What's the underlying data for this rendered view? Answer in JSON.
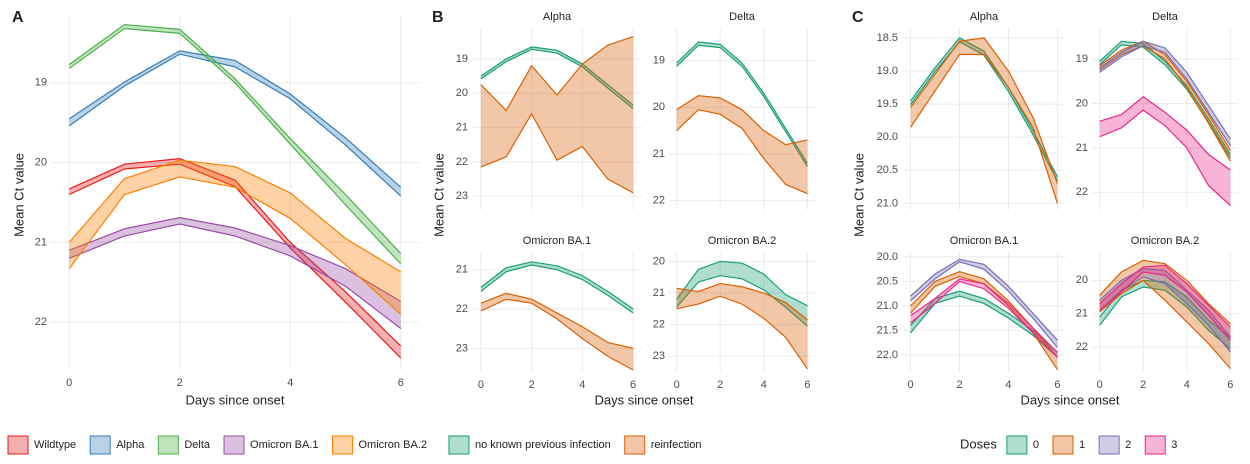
{
  "chart_data": [
    {
      "type": "ribbon",
      "panel": "A",
      "ylabel": "Mean Ct value",
      "xlabel": "Days since onset",
      "x": [
        0,
        1,
        2,
        3,
        4,
        5,
        6
      ],
      "xlim": [
        -0.33,
        6.33
      ],
      "xticks": [
        0,
        2,
        4,
        6
      ],
      "ylim": [
        18.15,
        22.6
      ],
      "yticks": [
        19,
        20,
        21,
        22
      ],
      "y_reverse": true,
      "grid": true,
      "series": [
        {
          "name": "Wildtype",
          "color": "#e41a1c",
          "lower": [
            20.33,
            20.02,
            19.95,
            20.22,
            21.0,
            21.62,
            22.3
          ],
          "upper": [
            20.4,
            20.08,
            20.02,
            20.3,
            21.07,
            21.75,
            22.45
          ]
        },
        {
          "name": "Alpha",
          "color": "#377eb8",
          "lower": [
            19.45,
            18.99,
            18.6,
            18.72,
            19.14,
            19.69,
            20.31
          ],
          "upper": [
            19.54,
            19.04,
            18.64,
            18.8,
            19.2,
            19.78,
            20.42
          ]
        },
        {
          "name": "Delta",
          "color": "#4daf4a",
          "lower": [
            18.77,
            18.27,
            18.33,
            18.95,
            19.7,
            20.4,
            21.14
          ],
          "upper": [
            18.82,
            18.32,
            18.38,
            19.0,
            19.77,
            20.53,
            21.27
          ]
        },
        {
          "name": "Omicron BA.1",
          "color": "#984ea3",
          "lower": [
            21.1,
            20.83,
            20.69,
            20.82,
            21.04,
            21.33,
            21.74
          ],
          "upper": [
            21.2,
            20.92,
            20.77,
            20.92,
            21.17,
            21.55,
            22.08
          ]
        },
        {
          "name": "Omicron BA.2",
          "color": "#ff7f00",
          "lower": [
            21.0,
            20.2,
            19.97,
            20.05,
            20.38,
            20.95,
            21.37
          ],
          "upper": [
            21.33,
            20.4,
            20.18,
            20.31,
            20.7,
            21.28,
            21.9
          ]
        }
      ]
    },
    {
      "type": "ribbon",
      "panel": "B",
      "ylabel": "Mean Ct value",
      "xlabel": "Days since onset",
      "title": "Alpha",
      "x": [
        0,
        1,
        2,
        3,
        4,
        5,
        6
      ],
      "xlim": [
        -0.35,
        6.35
      ],
      "xticks": [
        0,
        2,
        4,
        6
      ],
      "ylim": [
        18.1,
        23.4
      ],
      "yticks": [
        19,
        20,
        21,
        22,
        23
      ],
      "y_reverse": true,
      "grid": true,
      "series": [
        {
          "name": "no known previous infection",
          "color": "#1b9e77",
          "lower": [
            19.5,
            19.0,
            18.65,
            18.75,
            19.15,
            19.75,
            20.35
          ],
          "upper": [
            19.58,
            19.08,
            18.72,
            18.83,
            19.23,
            19.85,
            20.45
          ]
        },
        {
          "name": "reinfection",
          "color": "#d95f02",
          "lower": [
            19.75,
            20.5,
            19.2,
            20.05,
            19.15,
            18.6,
            18.35
          ],
          "upper": [
            22.15,
            21.85,
            20.6,
            21.95,
            21.55,
            22.5,
            22.9
          ]
        }
      ]
    },
    {
      "type": "ribbon",
      "title": "Delta",
      "x": [
        0,
        1,
        2,
        3,
        4,
        5,
        6
      ],
      "xlim": [
        -0.35,
        6.35
      ],
      "xticks": [
        0,
        2,
        4,
        6
      ],
      "ylim": [
        18.3,
        22.2
      ],
      "yticks": [
        19,
        20,
        21,
        22
      ],
      "y_reverse": true,
      "grid": true,
      "series": [
        {
          "name": "no known previous infection",
          "color": "#1b9e77",
          "lower": [
            19.05,
            18.6,
            18.65,
            19.05,
            19.7,
            20.45,
            21.2
          ],
          "upper": [
            19.12,
            18.67,
            18.72,
            19.12,
            19.77,
            20.52,
            21.27
          ]
        },
        {
          "name": "reinfection",
          "color": "#d95f02",
          "lower": [
            20.05,
            19.75,
            19.8,
            20.05,
            20.5,
            20.8,
            20.7
          ],
          "upper": [
            20.5,
            20.05,
            20.15,
            20.45,
            21.1,
            21.65,
            21.85
          ]
        }
      ]
    },
    {
      "type": "ribbon",
      "title": "Omicron BA.1",
      "x": [
        0,
        1,
        2,
        3,
        4,
        5,
        6
      ],
      "xlim": [
        -0.35,
        6.35
      ],
      "xticks": [
        0,
        2,
        4,
        6
      ],
      "ylim": [
        20.55,
        23.6
      ],
      "yticks": [
        21,
        22,
        23
      ],
      "y_reverse": true,
      "grid": true,
      "series": [
        {
          "name": "no known previous infection",
          "color": "#1b9e77",
          "lower": [
            21.45,
            20.95,
            20.8,
            20.9,
            21.15,
            21.55,
            22.0
          ],
          "upper": [
            21.55,
            21.05,
            20.88,
            21.0,
            21.25,
            21.65,
            22.1
          ]
        },
        {
          "name": "reinfection",
          "color": "#d95f02",
          "lower": [
            21.85,
            21.6,
            21.75,
            22.1,
            22.45,
            22.85,
            23.0
          ],
          "upper": [
            22.05,
            21.75,
            21.85,
            22.25,
            22.75,
            23.2,
            23.55
          ]
        }
      ]
    },
    {
      "type": "ribbon",
      "title": "Omicron BA.2",
      "x": [
        0,
        1,
        2,
        3,
        4,
        5,
        6
      ],
      "xlim": [
        -0.35,
        6.35
      ],
      "xticks": [
        0,
        2,
        4,
        6
      ],
      "ylim": [
        19.7,
        23.5
      ],
      "yticks": [
        20,
        21,
        22,
        23
      ],
      "y_reverse": true,
      "grid": true,
      "series": [
        {
          "name": "no known previous infection",
          "color": "#1b9e77",
          "lower": [
            21.2,
            20.25,
            20.0,
            20.05,
            20.4,
            21.05,
            21.4
          ],
          "upper": [
            21.45,
            20.65,
            20.45,
            20.55,
            20.9,
            21.45,
            22.05
          ]
        },
        {
          "name": "reinfection",
          "color": "#d95f02",
          "lower": [
            20.85,
            20.95,
            20.7,
            20.8,
            21.0,
            21.3,
            21.85
          ],
          "upper": [
            21.5,
            21.35,
            21.1,
            21.35,
            21.8,
            22.4,
            23.4
          ]
        }
      ]
    },
    {
      "type": "ribbon",
      "panel": "C",
      "ylabel": "Mean Ct value",
      "xlabel": "Days since onset",
      "title": "Alpha",
      "x": [
        0,
        1,
        2,
        3,
        4,
        5,
        6
      ],
      "xlim": [
        -0.35,
        6.35
      ],
      "xticks": [
        0,
        2,
        4,
        6
      ],
      "ylim": [
        18.35,
        21.1
      ],
      "yticks": [
        18.5,
        {
          "value": 19,
          "label": "19.0"
        },
        19.5,
        {
          "value": 20,
          "label": "20.0"
        },
        20.5,
        {
          "value": 21,
          "label": "21.0"
        }
      ],
      "y_reverse": true,
      "grid": true,
      "series": [
        {
          "name": "0",
          "color": "#1b9e77",
          "lower": [
            19.45,
            18.95,
            18.5,
            18.7,
            19.25,
            19.9,
            20.6
          ],
          "upper": [
            19.51,
            19.01,
            18.56,
            18.76,
            19.31,
            19.96,
            20.66
          ]
        },
        {
          "name": "1",
          "color": "#d95f02",
          "lower": [
            19.55,
            19.05,
            18.55,
            18.5,
            19.0,
            19.7,
            20.7
          ],
          "upper": [
            19.85,
            19.3,
            18.75,
            18.75,
            19.25,
            19.85,
            21.0
          ]
        }
      ]
    },
    {
      "type": "ribbon",
      "title": "Delta",
      "legend_title": "Doses",
      "x": [
        0,
        1,
        2,
        3,
        4,
        5,
        6
      ],
      "xlim": [
        -0.35,
        6.35
      ],
      "xticks": [
        0,
        2,
        4,
        6
      ],
      "ylim": [
        18.3,
        22.4
      ],
      "yticks": [
        19,
        20,
        21,
        22
      ],
      "y_reverse": true,
      "grid": true,
      "series": [
        {
          "name": "0",
          "color": "#1b9e77",
          "lower": [
            19.05,
            18.6,
            18.65,
            19.05,
            19.6,
            20.35,
            21.15
          ],
          "upper": [
            19.13,
            18.68,
            18.73,
            19.13,
            19.68,
            20.43,
            21.23
          ]
        },
        {
          "name": "1",
          "color": "#d95f02",
          "lower": [
            19.15,
            18.8,
            18.6,
            18.9,
            19.5,
            20.25,
            21.05
          ],
          "upper": [
            19.25,
            18.9,
            18.7,
            19.0,
            19.65,
            20.45,
            21.3
          ]
        },
        {
          "name": "2",
          "color": "#7570b3",
          "lower": [
            19.2,
            18.85,
            18.6,
            18.75,
            19.3,
            20.05,
            20.8
          ],
          "upper": [
            19.3,
            18.95,
            18.7,
            18.85,
            19.45,
            20.2,
            20.95
          ]
        },
        {
          "name": "3",
          "color": "#e7298a",
          "lower": [
            20.4,
            20.25,
            19.85,
            20.2,
            20.6,
            21.15,
            21.5
          ],
          "upper": [
            20.75,
            20.55,
            20.15,
            20.5,
            21.0,
            21.85,
            22.3
          ]
        }
      ]
    },
    {
      "type": "ribbon",
      "title": "Omicron BA.1",
      "x": [
        0,
        1,
        2,
        3,
        4,
        5,
        6
      ],
      "xlim": [
        -0.35,
        6.35
      ],
      "xticks": [
        0,
        2,
        4,
        6
      ],
      "ylim": [
        19.9,
        22.35
      ],
      "yticks": [
        {
          "value": 20,
          "label": "20.0"
        },
        20.5,
        {
          "value": 21,
          "label": "21.0"
        },
        21.5,
        {
          "value": 22,
          "label": "22.0"
        }
      ],
      "y_reverse": true,
      "grid": true,
      "series": [
        {
          "name": "0",
          "color": "#1b9e77",
          "lower": [
            21.4,
            20.85,
            20.7,
            20.85,
            21.15,
            21.5,
            21.95
          ],
          "upper": [
            21.55,
            20.95,
            20.8,
            20.95,
            21.25,
            21.6,
            22.05
          ]
        },
        {
          "name": "1",
          "color": "#d95f02",
          "lower": [
            21.0,
            20.5,
            20.3,
            20.45,
            20.9,
            21.45,
            22.05
          ],
          "upper": [
            21.15,
            20.6,
            20.4,
            20.55,
            21.0,
            21.55,
            22.3
          ]
        },
        {
          "name": "2",
          "color": "#7570b3",
          "lower": [
            20.8,
            20.35,
            20.05,
            20.15,
            20.6,
            21.15,
            21.7
          ],
          "upper": [
            20.9,
            20.45,
            20.1,
            20.25,
            20.7,
            21.25,
            21.85
          ]
        },
        {
          "name": "3",
          "color": "#e7298a",
          "lower": [
            21.2,
            20.85,
            20.45,
            20.55,
            20.95,
            21.45,
            21.95
          ],
          "upper": [
            21.35,
            20.95,
            20.5,
            20.65,
            21.05,
            21.55,
            22.05
          ]
        }
      ]
    },
    {
      "type": "ribbon",
      "title": "Omicron BA.2",
      "x": [
        0,
        1,
        2,
        3,
        4,
        5,
        6
      ],
      "xlim": [
        -0.35,
        6.35
      ],
      "xticks": [
        0,
        2,
        4,
        6
      ],
      "ylim": [
        19.15,
        22.75
      ],
      "yticks": [
        20,
        21,
        22
      ],
      "y_reverse": true,
      "grid": true,
      "series": [
        {
          "name": "0",
          "color": "#1b9e77",
          "lower": [
            21.1,
            20.3,
            20.0,
            20.05,
            20.5,
            21.2,
            21.7
          ],
          "upper": [
            21.35,
            20.5,
            20.2,
            20.3,
            20.8,
            21.5,
            22.05
          ]
        },
        {
          "name": "1",
          "color": "#d95f02",
          "lower": [
            20.45,
            19.75,
            19.4,
            19.5,
            20.0,
            20.7,
            21.3
          ],
          "upper": [
            20.95,
            20.4,
            20.0,
            20.6,
            21.25,
            21.9,
            22.65
          ]
        },
        {
          "name": "2",
          "color": "#7570b3",
          "lower": [
            20.6,
            20.0,
            19.65,
            19.7,
            20.3,
            20.9,
            21.7
          ],
          "upper": [
            20.9,
            20.3,
            19.9,
            20.1,
            20.7,
            21.35,
            22.15
          ]
        },
        {
          "name": "3",
          "color": "#e7298a",
          "lower": [
            20.7,
            20.1,
            19.6,
            19.55,
            20.1,
            20.75,
            21.4
          ],
          "upper": [
            20.9,
            20.35,
            19.75,
            19.85,
            20.35,
            21.05,
            21.8
          ]
        }
      ]
    }
  ]
}
